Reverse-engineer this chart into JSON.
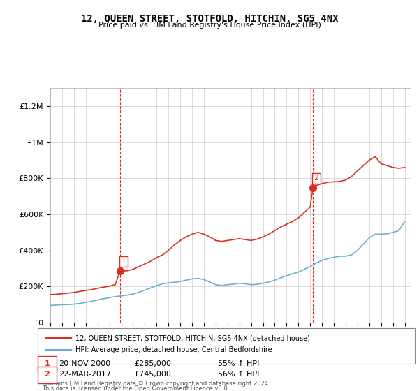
{
  "title": "12, QUEEN STREET, STOTFOLD, HITCHIN, SG5 4NX",
  "subtitle": "Price paid vs. HM Land Registry's House Price Index (HPI)",
  "legend_line1": "12, QUEEN STREET, STOTFOLD, HITCHIN, SG5 4NX (detached house)",
  "legend_line2": "HPI: Average price, detached house, Central Bedfordshire",
  "footer1": "Contains HM Land Registry data © Crown copyright and database right 2024.",
  "footer2": "This data is licensed under the Open Government Licence v3.0.",
  "sale1_label": "1",
  "sale1_date": "20-NOV-2000",
  "sale1_price": "£285,000",
  "sale1_hpi": "55% ↑ HPI",
  "sale2_label": "2",
  "sale2_date": "22-MAR-2017",
  "sale2_price": "£745,000",
  "sale2_hpi": "56% ↑ HPI",
  "hpi_color": "#6baed6",
  "price_color": "#d73027",
  "marker_color": "#d73027",
  "sale1_x": 2000.9,
  "sale1_y": 285000,
  "sale2_x": 2017.23,
  "sale2_y": 745000,
  "sale1_vline_x": 2000.9,
  "sale2_vline_x": 2017.23,
  "ylim_min": 0,
  "ylim_max": 1300000,
  "xlim_min": 1995,
  "xlim_max": 2025.5,
  "yticks": [
    0,
    200000,
    400000,
    600000,
    800000,
    1000000,
    1200000
  ],
  "ytick_labels": [
    "£0",
    "£200K",
    "£400K",
    "£600K",
    "£800K",
    "£1M",
    "£1.2M"
  ],
  "xticks": [
    1995,
    1996,
    1997,
    1998,
    1999,
    2000,
    2001,
    2002,
    2003,
    2004,
    2005,
    2006,
    2007,
    2008,
    2009,
    2010,
    2011,
    2012,
    2013,
    2014,
    2015,
    2016,
    2017,
    2018,
    2019,
    2020,
    2021,
    2022,
    2023,
    2024,
    2025
  ],
  "background_color": "#ffffff",
  "plot_bg_color": "#ffffff",
  "grid_color": "#cccccc",
  "hpi_data_x": [
    1995,
    1995.5,
    1996,
    1996.5,
    1997,
    1997.5,
    1998,
    1998.5,
    1999,
    1999.5,
    2000,
    2000.5,
    2001,
    2001.5,
    2002,
    2002.5,
    2003,
    2003.5,
    2004,
    2004.5,
    2005,
    2005.5,
    2006,
    2006.5,
    2007,
    2007.5,
    2008,
    2008.5,
    2009,
    2009.5,
    2010,
    2010.5,
    2011,
    2011.5,
    2012,
    2012.5,
    2013,
    2013.5,
    2014,
    2014.5,
    2015,
    2015.5,
    2016,
    2016.5,
    2017,
    2017.5,
    2018,
    2018.5,
    2019,
    2019.5,
    2020,
    2020.5,
    2021,
    2021.5,
    2022,
    2022.5,
    2023,
    2023.5,
    2024,
    2024.5,
    2025
  ],
  "hpi_data_y": [
    95000,
    97000,
    99000,
    100000,
    102000,
    106000,
    112000,
    118000,
    125000,
    132000,
    138000,
    144000,
    148000,
    152000,
    158000,
    168000,
    180000,
    192000,
    205000,
    215000,
    220000,
    223000,
    228000,
    235000,
    242000,
    245000,
    238000,
    225000,
    210000,
    205000,
    210000,
    213000,
    218000,
    215000,
    210000,
    212000,
    218000,
    225000,
    235000,
    248000,
    260000,
    270000,
    280000,
    295000,
    310000,
    330000,
    345000,
    355000,
    362000,
    368000,
    368000,
    375000,
    400000,
    435000,
    470000,
    490000,
    490000,
    492000,
    500000,
    510000,
    560000
  ],
  "price_data_x": [
    1995,
    1995.5,
    1996,
    1996.5,
    1997,
    1997.5,
    1998,
    1998.5,
    1999,
    1999.5,
    2000,
    2000.5,
    2000.9,
    2001,
    2001.5,
    2002,
    2002.5,
    2003,
    2003.5,
    2004,
    2004.5,
    2005,
    2005.5,
    2006,
    2006.5,
    2007,
    2007.5,
    2008,
    2008.5,
    2009,
    2009.5,
    2010,
    2010.5,
    2011,
    2011.5,
    2012,
    2012.5,
    2013,
    2013.5,
    2014,
    2014.5,
    2015,
    2015.5,
    2016,
    2016.5,
    2017,
    2017.23,
    2017.5,
    2018,
    2018.5,
    2019,
    2019.5,
    2020,
    2020.5,
    2021,
    2021.5,
    2022,
    2022.5,
    2023,
    2023.5,
    2024,
    2024.5,
    2025
  ],
  "price_data_y": [
    155000,
    157000,
    160000,
    163000,
    167000,
    173000,
    178000,
    183000,
    190000,
    196000,
    202000,
    210000,
    285000,
    285000,
    287000,
    295000,
    310000,
    325000,
    340000,
    360000,
    375000,
    400000,
    430000,
    455000,
    475000,
    490000,
    500000,
    490000,
    475000,
    455000,
    450000,
    455000,
    460000,
    465000,
    460000,
    455000,
    462000,
    475000,
    490000,
    510000,
    530000,
    545000,
    560000,
    580000,
    610000,
    640000,
    745000,
    760000,
    770000,
    778000,
    780000,
    782000,
    790000,
    810000,
    840000,
    870000,
    900000,
    920000,
    880000,
    870000,
    860000,
    855000,
    860000
  ]
}
